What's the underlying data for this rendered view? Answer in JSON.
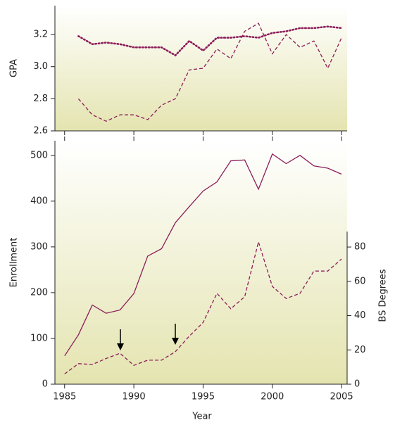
{
  "chart_data": [
    {
      "type": "line",
      "ylabel": "GPA",
      "x": [
        1986,
        1987,
        1988,
        1989,
        1990,
        1991,
        1992,
        1993,
        1994,
        1995,
        1996,
        1997,
        1998,
        1999,
        2000,
        2001,
        2002,
        2003,
        2004,
        2005
      ],
      "series": [
        {
          "color": "#8c1d5a",
          "style": "dotted",
          "values": [
            3.19,
            3.14,
            3.15,
            3.14,
            3.12,
            3.12,
            3.12,
            3.07,
            3.16,
            3.1,
            3.18,
            3.18,
            3.19,
            3.18,
            3.21,
            3.22,
            3.24,
            3.24,
            3.25,
            3.24
          ]
        },
        {
          "color": "#8c1d5a",
          "style": "dashed",
          "values": [
            2.8,
            2.7,
            2.66,
            2.7,
            2.7,
            2.67,
            2.76,
            2.8,
            2.98,
            2.99,
            3.11,
            3.05,
            3.22,
            3.27,
            3.08,
            3.2,
            3.12,
            3.16,
            2.99,
            3.18
          ]
        }
      ],
      "xlim": [
        1984.3,
        2005.4
      ],
      "ylim": [
        2.6,
        3.38
      ],
      "yticks": [
        2.6,
        2.8,
        {
          "value": 3,
          "label": "3.0"
        },
        3.2
      ]
    },
    {
      "type": "line",
      "xlabel": "Year",
      "ylabel": "Enrollment",
      "y2label": "BS Degrees",
      "x": [
        1985,
        1986,
        1987,
        1988,
        1989,
        1990,
        1991,
        1992,
        1993,
        1994,
        1995,
        1996,
        1997,
        1998,
        1999,
        2000,
        2001,
        2002,
        2003,
        2004,
        2005
      ],
      "series": [
        {
          "color": "#8c1d5a",
          "style": "solid",
          "values": [
            62,
            108,
            173,
            155,
            162,
            198,
            280,
            296,
            353,
            388,
            422,
            442,
            488,
            490,
            426,
            503,
            482,
            500,
            477,
            472,
            459
          ]
        },
        {
          "color": "#8c1d5a",
          "style": "dashed",
          "axis": "y2",
          "values": [
            6,
            12,
            11.5,
            15,
            18,
            11,
            14,
            14,
            19,
            28,
            36,
            53,
            44,
            51,
            83,
            57,
            50,
            53,
            66,
            66,
            73
          ]
        }
      ],
      "xlim": [
        1984.3,
        2005.4
      ],
      "ylim": [
        0,
        532
      ],
      "y2lim": [
        0,
        142
      ],
      "xticks": [
        1985,
        1990,
        1995,
        2000,
        2005
      ],
      "yticks": [
        0,
        100,
        200,
        300,
        400,
        500
      ],
      "y2ticks": [
        0,
        20,
        40,
        60,
        80
      ]
    }
  ]
}
